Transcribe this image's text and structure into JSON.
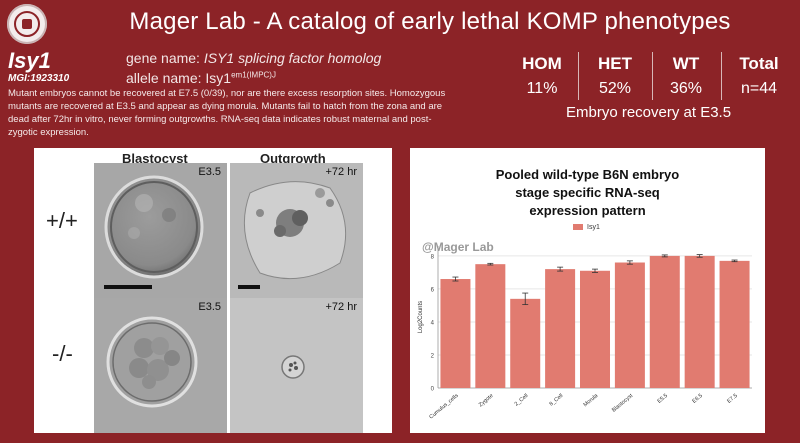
{
  "header": {
    "title": "Mager Lab - A catalog of early lethal KOMP phenotypes"
  },
  "gene": {
    "symbol": "Isy1",
    "mgi": "MGI:1923310",
    "gene_name_label": "gene name: ",
    "gene_name": "ISY1 splicing factor homolog",
    "allele_label": "allele name: ",
    "allele_base": "Isy1",
    "allele_sup": "em1(IMPC)J"
  },
  "description": "Mutant embryos cannot be recovered at E7.5 (0/39), nor are there excess resorption sites. Homozygous mutants are recovered at E3.5 and appear as dying morula. Mutants fail to hatch from the zona and are dead after 72hr in vitro, never forming outgrowths.  RNA-seq data indicates robust maternal and post-zygotic expression.",
  "stats": {
    "columns": [
      {
        "header": "HOM",
        "value": "11%"
      },
      {
        "header": "HET",
        "value": "52%"
      },
      {
        "header": "WT",
        "value": "36%"
      },
      {
        "header": "Total",
        "value": "n=44"
      }
    ],
    "caption": "Embryo recovery at E3.5"
  },
  "images": {
    "col_labels": [
      "Blastocyst",
      "Outgrowth"
    ],
    "row_labels": [
      "+/+",
      "-/-"
    ],
    "stage_labels": [
      "E3.5",
      "+72 hr",
      "E3.5",
      "+72 hr"
    ]
  },
  "chart_data": {
    "type": "bar",
    "title": "Pooled wild-type B6N embryo stage specific RNA-seq expression pattern",
    "title_lines": [
      "Pooled wild-type B6N embryo",
      "stage specific RNA-seq",
      "expression pattern"
    ],
    "watermark": "@Mager Lab",
    "ylabel": "Log2Counts",
    "legend": [
      "Isy1"
    ],
    "bar_color": "#e17b70",
    "categories": [
      "Cumulus_cells",
      "Zygote",
      "2_Cell",
      "8_Cell",
      "Morula",
      "Blastocyst",
      "E5.5",
      "E6.5",
      "E7.5"
    ],
    "values": [
      6.6,
      7.5,
      5.4,
      7.2,
      7.1,
      7.6,
      8.0,
      8.0,
      7.7
    ],
    "errors": [
      0.12,
      0.05,
      0.35,
      0.12,
      0.1,
      0.1,
      0.06,
      0.08,
      0.05
    ],
    "yticks": [
      0,
      2,
      4,
      6,
      8
    ],
    "ylim": [
      0,
      8.6
    ],
    "grid": true,
    "legend_position": "top"
  }
}
